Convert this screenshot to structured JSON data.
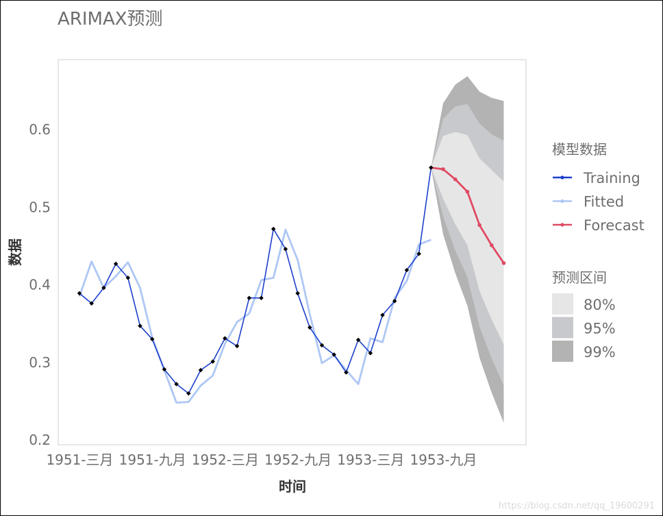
{
  "chart_data": {
    "type": "line",
    "title": "ARIMAX预测",
    "xlabel": "时间",
    "ylabel": "数据",
    "ylim": [
      0.2,
      0.69
    ],
    "xlim": [
      0,
      37
    ],
    "x_ticks": [
      {
        "pos": 0,
        "label": "1951-三月"
      },
      {
        "pos": 6,
        "label": "1951-九月"
      },
      {
        "pos": 12,
        "label": "1952-三月"
      },
      {
        "pos": 18,
        "label": "1952-九月"
      },
      {
        "pos": 24,
        "label": "1953-三月"
      },
      {
        "pos": 30,
        "label": "1953-九月"
      }
    ],
    "y_ticks": [
      0.2,
      0.3,
      0.4,
      0.5,
      0.6
    ],
    "grid": false,
    "legend_placement": "right",
    "series": [
      {
        "name": "Training",
        "color": "#1c3fcc",
        "x": [
          0,
          1,
          2,
          3,
          4,
          5,
          6,
          7,
          8,
          9,
          10,
          11,
          12,
          13,
          14,
          15,
          16,
          17,
          18,
          19,
          20,
          21,
          22,
          23,
          24,
          25,
          26,
          27,
          28,
          29
        ],
        "values": [
          0.389,
          0.376,
          0.396,
          0.427,
          0.409,
          0.347,
          0.33,
          0.291,
          0.272,
          0.26,
          0.29,
          0.301,
          0.331,
          0.321,
          0.383,
          0.383,
          0.472,
          0.446,
          0.389,
          0.345,
          0.322,
          0.31,
          0.287,
          0.329,
          0.312,
          0.361,
          0.379,
          0.419,
          0.44,
          0.551
        ]
      },
      {
        "name": "Fitted",
        "color": "#aec7f5",
        "x": [
          0,
          1,
          2,
          3,
          4,
          5,
          6,
          7,
          8,
          9,
          10,
          11,
          12,
          13,
          14,
          15,
          16,
          17,
          18,
          19,
          20,
          21,
          22,
          23,
          24,
          25,
          26,
          27,
          28,
          29
        ],
        "values": [
          0.385,
          0.43,
          0.396,
          0.411,
          0.429,
          0.396,
          0.332,
          0.29,
          0.248,
          0.249,
          0.27,
          0.283,
          0.324,
          0.352,
          0.363,
          0.406,
          0.409,
          0.471,
          0.432,
          0.362,
          0.299,
          0.309,
          0.29,
          0.272,
          0.331,
          0.326,
          0.383,
          0.405,
          0.452,
          0.458
        ]
      },
      {
        "name": "Forecast",
        "color": "#e04a63",
        "x": [
          29,
          30,
          31,
          32,
          33,
          34,
          35
        ],
        "values": [
          0.551,
          0.549,
          0.536,
          0.52,
          0.477,
          0.451,
          0.428
        ]
      }
    ],
    "intervals": [
      {
        "name": "99%",
        "color": "#b3b3b3",
        "x": [
          29,
          30,
          31,
          32,
          33,
          34,
          35
        ],
        "upper": [
          0.551,
          0.634,
          0.658,
          0.669,
          0.649,
          0.641,
          0.637
        ],
        "lower": [
          0.551,
          0.465,
          0.415,
          0.373,
          0.306,
          0.261,
          0.222
        ]
      },
      {
        "name": "95%",
        "color": "#c8c9cc",
        "x": [
          29,
          30,
          31,
          32,
          33,
          34,
          35
        ],
        "upper": [
          0.551,
          0.614,
          0.63,
          0.633,
          0.608,
          0.594,
          0.586
        ],
        "lower": [
          0.551,
          0.488,
          0.444,
          0.41,
          0.346,
          0.305,
          0.27
        ]
      },
      {
        "name": "80%",
        "color": "#e6e6e7",
        "x": [
          29,
          30,
          31,
          32,
          33,
          34,
          35
        ],
        "upper": [
          0.551,
          0.592,
          0.597,
          0.593,
          0.563,
          0.548,
          0.533
        ],
        "lower": [
          0.551,
          0.511,
          0.478,
          0.451,
          0.392,
          0.355,
          0.323
        ]
      }
    ]
  },
  "legend": {
    "series_title": "模型数据",
    "series_items": [
      {
        "label": "Training",
        "color": "#1c3fcc"
      },
      {
        "label": "Fitted",
        "color": "#aec7f5"
      },
      {
        "label": "Forecast",
        "color": "#e04a63"
      }
    ],
    "interval_title": "预测区间",
    "interval_items": [
      {
        "label": "80%",
        "color": "#e6e6e7"
      },
      {
        "label": "95%",
        "color": "#c8c9cc"
      },
      {
        "label": "99%",
        "color": "#b3b3b3"
      }
    ]
  },
  "watermark": "https://blog.csdn.net/qq_19600291"
}
